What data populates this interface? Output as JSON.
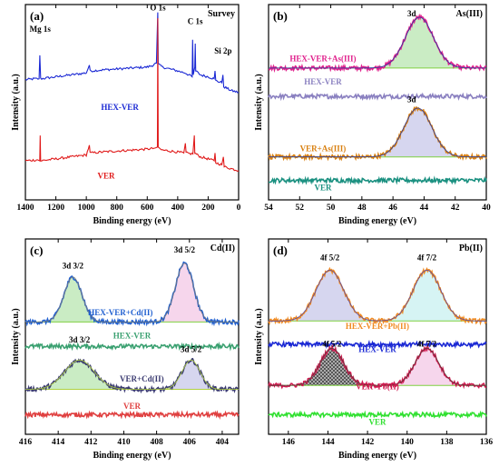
{
  "chart_data": [
    {
      "id": "a",
      "type": "line",
      "panel_label": "(a)",
      "corner_title": "Survey",
      "xlabel": "Binding energy (eV)",
      "ylabel": "Intensity (a.u.)",
      "xlim": [
        1400,
        0
      ],
      "xticks": [
        1400,
        1200,
        1000,
        800,
        600,
        400,
        200,
        0
      ],
      "x_reversed": true,
      "ylim": [
        0,
        1
      ],
      "peak_labels": [
        {
          "text": "Mg 1s",
          "x": 1303,
          "y": 0.86
        },
        {
          "text": "O 1s",
          "x": 530,
          "y": 0.97
        },
        {
          "text": "C 1s",
          "x": 285,
          "y": 0.9
        },
        {
          "text": "Si 2p",
          "x": 102,
          "y": 0.75
        }
      ],
      "series": [
        {
          "name": "HEX-VER",
          "color": "#1a28d4",
          "label_x": 780,
          "label_y": 0.46,
          "points": [
            [
              1400,
              0.615
            ],
            [
              1340,
              0.62
            ],
            [
              1310,
              0.62
            ],
            [
              1305,
              0.74
            ],
            [
              1300,
              0.62
            ],
            [
              1250,
              0.625
            ],
            [
              1200,
              0.63
            ],
            [
              1150,
              0.635
            ],
            [
              1100,
              0.64
            ],
            [
              1050,
              0.645
            ],
            [
              1000,
              0.65
            ],
            [
              980,
              0.69
            ],
            [
              975,
              0.66
            ],
            [
              900,
              0.665
            ],
            [
              800,
              0.67
            ],
            [
              700,
              0.675
            ],
            [
              600,
              0.68
            ],
            [
              560,
              0.69
            ],
            [
              540,
              0.7
            ],
            [
              531,
              0.96
            ],
            [
              528,
              0.7
            ],
            [
              520,
              0.69
            ],
            [
              500,
              0.68
            ],
            [
              450,
              0.67
            ],
            [
              400,
              0.66
            ],
            [
              350,
              0.65
            ],
            [
              305,
              0.63
            ],
            [
              302,
              0.82
            ],
            [
              298,
              0.64
            ],
            [
              288,
              0.68
            ],
            [
              285,
              0.8
            ],
            [
              282,
              0.66
            ],
            [
              250,
              0.64
            ],
            [
              200,
              0.63
            ],
            [
              160,
              0.62
            ],
            [
              155,
              0.66
            ],
            [
              150,
              0.61
            ],
            [
              110,
              0.6
            ],
            [
              103,
              0.64
            ],
            [
              98,
              0.58
            ],
            [
              50,
              0.56
            ],
            [
              0,
              0.55
            ]
          ]
        },
        {
          "name": "VER",
          "color": "#e01a1a",
          "label_x": 870,
          "label_y": 0.11,
          "points": [
            [
              1400,
              0.2
            ],
            [
              1320,
              0.205
            ],
            [
              1306,
              0.2
            ],
            [
              1303,
              0.33
            ],
            [
              1300,
              0.2
            ],
            [
              1200,
              0.21
            ],
            [
              1100,
              0.22
            ],
            [
              1000,
              0.23
            ],
            [
              980,
              0.28
            ],
            [
              975,
              0.24
            ],
            [
              900,
              0.245
            ],
            [
              800,
              0.25
            ],
            [
              700,
              0.255
            ],
            [
              600,
              0.26
            ],
            [
              550,
              0.265
            ],
            [
              533,
              0.27
            ],
            [
              531,
              0.93
            ],
            [
              528,
              0.27
            ],
            [
              520,
              0.26
            ],
            [
              500,
              0.255
            ],
            [
              450,
              0.25
            ],
            [
              400,
              0.245
            ],
            [
              360,
              0.24
            ],
            [
              350,
              0.29
            ],
            [
              345,
              0.24
            ],
            [
              300,
              0.235
            ],
            [
              291,
              0.33
            ],
            [
              288,
              0.24
            ],
            [
              270,
              0.23
            ],
            [
              250,
              0.22
            ],
            [
              200,
              0.21
            ],
            [
              160,
              0.2
            ],
            [
              155,
              0.24
            ],
            [
              150,
              0.19
            ],
            [
              110,
              0.18
            ],
            [
              100,
              0.22
            ],
            [
              95,
              0.17
            ],
            [
              50,
              0.16
            ],
            [
              0,
              0.15
            ]
          ]
        }
      ]
    },
    {
      "id": "b",
      "type": "line",
      "panel_label": "(b)",
      "corner_title": "As(III)",
      "xlabel": "Binding energy (eV)",
      "ylabel": "Intensity (a.u.)",
      "xlim": [
        54,
        40
      ],
      "xticks": [
        54,
        52,
        50,
        48,
        46,
        44,
        42,
        40
      ],
      "x_reversed": true,
      "ylim": [
        0,
        1
      ],
      "peak_labels": [
        {
          "text": "3d",
          "x": 44.8,
          "y": 0.94
        },
        {
          "text": "3d",
          "x": 44.8,
          "y": 0.5
        }
      ],
      "series": [
        {
          "name": "HEX-VER+As(III)",
          "color": "#e0208c",
          "fit_color": "#2a3aa0",
          "fill": "#b8e6b0",
          "baseline": 0.675,
          "center": 44.3,
          "height": 0.26,
          "width": 0.9,
          "label_x": 50.5,
          "label_y": 0.71
        },
        {
          "name": "HEX-VER",
          "color": "#8a80c0",
          "baseline": 0.53,
          "label_x": 50.5,
          "label_y": 0.59
        },
        {
          "name": "VER+As(III)",
          "color": "#d98010",
          "fit_color": "#2a3aa0",
          "fill": "#c8c8ea",
          "baseline": 0.22,
          "center": 44.4,
          "height": 0.25,
          "width": 0.9,
          "label_x": 50.5,
          "label_y": 0.25
        },
        {
          "name": "VER",
          "color": "#1a9080",
          "baseline": 0.1,
          "label_x": 50.5,
          "label_y": 0.05
        }
      ]
    },
    {
      "id": "c",
      "type": "line",
      "panel_label": "(c)",
      "corner_title": "Cd(II)",
      "xlabel": "Binding energy (eV)",
      "ylabel": "Intensity (a.u.)",
      "xlim": [
        416,
        403
      ],
      "xticks": [
        416,
        414,
        412,
        410,
        408,
        406,
        404
      ],
      "x_reversed": true,
      "ylim": [
        0,
        1
      ],
      "peak_labels": [
        {
          "text": "3d 3/2",
          "x": 413.1,
          "y": 0.85
        },
        {
          "text": "3d 5/2",
          "x": 406.3,
          "y": 0.93
        },
        {
          "text": "3d 3/2",
          "x": 412.7,
          "y": 0.47
        },
        {
          "text": "3d 5/2",
          "x": 405.9,
          "y": 0.42
        }
      ],
      "series": [
        {
          "name": "HEX-VER+Cd(II)",
          "color": "#1f5fd0",
          "fit_color": "#7a7a7a",
          "fills": [
            "#b8e6b0",
            "#f3c8e6"
          ],
          "baseline": 0.575,
          "peaks": [
            [
              413.1,
              0.23,
              0.55
            ],
            [
              406.3,
              0.3,
              0.55
            ]
          ],
          "label_x": 410.2,
          "label_y": 0.61
        },
        {
          "name": "HEX-VER",
          "color": "#3aa070",
          "baseline": 0.45,
          "label_x": 409.5,
          "label_y": 0.49
        },
        {
          "name": "VER+Cd(II)",
          "color": "#3a3a70",
          "fit_color": "#b0d040",
          "fills": [
            "#b8e6b0",
            "#c8c8ea"
          ],
          "baseline": 0.23,
          "peaks": [
            [
              412.7,
              0.15,
              0.9
            ],
            [
              405.9,
              0.15,
              0.55
            ]
          ],
          "label_x": 408.9,
          "label_y": 0.27
        },
        {
          "name": "VER",
          "color": "#e04040",
          "baseline": 0.1,
          "label_x": 409.5,
          "label_y": 0.13
        }
      ]
    },
    {
      "id": "d",
      "type": "line",
      "panel_label": "(d)",
      "corner_title": "Pb(II)",
      "xlabel": "Binding energy (eV)",
      "ylabel": "Intensity (a.u.)",
      "xlim": [
        147,
        136
      ],
      "xticks": [
        146,
        144,
        142,
        140,
        138,
        136
      ],
      "x_reversed": true,
      "ylim": [
        0,
        1
      ],
      "peak_labels": [
        {
          "text": "4f 5/2",
          "x": 143.9,
          "y": 0.89
        },
        {
          "text": "4f 7/2",
          "x": 139.0,
          "y": 0.89
        },
        {
          "text": "4f 5/2",
          "x": 143.8,
          "y": 0.45
        },
        {
          "text": "4f 7/2",
          "x": 139.0,
          "y": 0.45
        }
      ],
      "series": [
        {
          "name": "HEX-VER+Pb(II)",
          "color": "#f08a20",
          "fit_color": "#5a4aa0",
          "fills": [
            "#c8c8ea",
            "#c8f0f0"
          ],
          "baseline": 0.58,
          "peaks": [
            [
              143.9,
              0.26,
              0.7
            ],
            [
              139.0,
              0.26,
              0.7
            ]
          ],
          "label_x": 141.5,
          "label_y": 0.54
        },
        {
          "name": "HEX-VER",
          "color": "#1a28d4",
          "baseline": 0.46,
          "label_x": 141.5,
          "label_y": 0.42
        },
        {
          "name": "VER+Pb(II)",
          "color": "#d01a50",
          "fit_color": "#5a3a3a",
          "fills": [
            "#3a3a3a",
            "#f3c8e6"
          ],
          "baseline": 0.25,
          "peaks": [
            [
              143.8,
              0.19,
              0.6
            ],
            [
              139.0,
              0.19,
              0.6
            ]
          ],
          "label_x": 141.5,
          "label_y": 0.23
        },
        {
          "name": "VER",
          "color": "#30e030",
          "baseline": 0.1,
          "label_x": 141.5,
          "label_y": 0.05
        }
      ]
    }
  ]
}
